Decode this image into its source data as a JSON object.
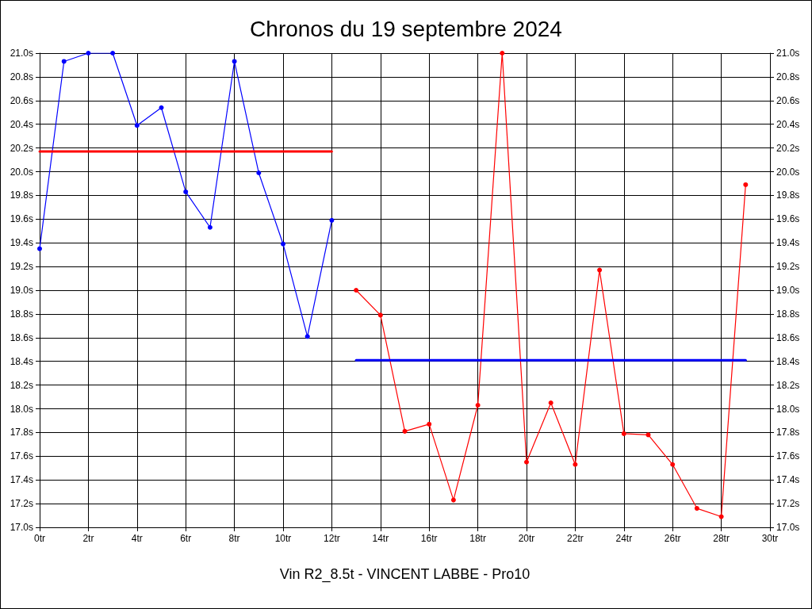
{
  "chart_data": {
    "type": "line",
    "title": "Chronos du 19 septembre 2024",
    "xlabel": "Vin R2_8.5t - VINCENT LABBE - Pro10",
    "series": [
      {
        "color": "#0000ff",
        "x": [
          0,
          1,
          2,
          3,
          4,
          5,
          6,
          7,
          8,
          9,
          10,
          11,
          12
        ],
        "values": [
          19.35,
          20.93,
          21.0,
          21.0,
          20.39,
          20.54,
          19.83,
          19.53,
          20.93,
          19.99,
          19.39,
          18.61,
          19.59
        ]
      },
      {
        "color": "#ff0000",
        "x": [
          13,
          14,
          15,
          16,
          17,
          18,
          19,
          20,
          21,
          22,
          23,
          24,
          25,
          26,
          27,
          28,
          29
        ],
        "values": [
          19.0,
          18.79,
          17.81,
          17.87,
          17.23,
          18.03,
          21.0,
          17.55,
          18.05,
          17.53,
          19.17,
          17.79,
          17.78,
          17.53,
          17.16,
          17.09,
          19.89
        ]
      },
      {
        "color": "#ff0000",
        "x": [
          0,
          12
        ],
        "values": [
          20.17,
          20.17
        ],
        "marker": "none"
      },
      {
        "color": "#0000ff",
        "x": [
          13,
          29
        ],
        "values": [
          18.41,
          18.41
        ],
        "marker": "none"
      }
    ],
    "xlim": [
      0,
      30
    ],
    "xticks": [
      {
        "value": 0,
        "label": "0tr"
      },
      {
        "value": 2,
        "label": "2tr"
      },
      {
        "value": 4,
        "label": "4tr"
      },
      {
        "value": 6,
        "label": "6tr"
      },
      {
        "value": 8,
        "label": "8tr"
      },
      {
        "value": 10,
        "label": "10tr"
      },
      {
        "value": 12,
        "label": "12tr"
      },
      {
        "value": 14,
        "label": "14tr"
      },
      {
        "value": 16,
        "label": "16tr"
      },
      {
        "value": 18,
        "label": "18tr"
      },
      {
        "value": 20,
        "label": "20tr"
      },
      {
        "value": 22,
        "label": "22tr"
      },
      {
        "value": 24,
        "label": "24tr"
      },
      {
        "value": 26,
        "label": "26tr"
      },
      {
        "value": 28,
        "label": "28tr"
      },
      {
        "value": 30,
        "label": "30tr"
      }
    ],
    "ylim": [
      17.0,
      21.0
    ],
    "yticks": [
      {
        "value": 17.0,
        "label": "17.0s"
      },
      {
        "value": 17.2,
        "label": "17.2s"
      },
      {
        "value": 17.4,
        "label": "17.4s"
      },
      {
        "value": 17.6,
        "label": "17.6s"
      },
      {
        "value": 17.8,
        "label": "17.8s"
      },
      {
        "value": 18.0,
        "label": "18.0s"
      },
      {
        "value": 18.2,
        "label": "18.2s"
      },
      {
        "value": 18.4,
        "label": "18.4s"
      },
      {
        "value": 18.6,
        "label": "18.6s"
      },
      {
        "value": 18.8,
        "label": "18.8s"
      },
      {
        "value": 19.0,
        "label": "19.0s"
      },
      {
        "value": 19.2,
        "label": "19.2s"
      },
      {
        "value": 19.4,
        "label": "19.4s"
      },
      {
        "value": 19.6,
        "label": "19.6s"
      },
      {
        "value": 19.8,
        "label": "19.8s"
      },
      {
        "value": 20.0,
        "label": "20.0s"
      },
      {
        "value": 20.2,
        "label": "20.2s"
      },
      {
        "value": 20.4,
        "label": "20.4s"
      },
      {
        "value": 20.6,
        "label": "20.6s"
      },
      {
        "value": 20.8,
        "label": "20.8s"
      },
      {
        "value": 21.0,
        "label": "21.0s"
      }
    ],
    "y2lim": [
      17.0,
      21.0
    ],
    "y2ticks": [
      {
        "value": 17.0,
        "label": "17.0s"
      },
      {
        "value": 17.2,
        "label": "17.2s"
      },
      {
        "value": 17.4,
        "label": "17.4s"
      },
      {
        "value": 17.6,
        "label": "17.6s"
      },
      {
        "value": 17.8,
        "label": "17.8s"
      },
      {
        "value": 18.0,
        "label": "18.0s"
      },
      {
        "value": 18.2,
        "label": "18.2s"
      },
      {
        "value": 18.4,
        "label": "18.4s"
      },
      {
        "value": 18.6,
        "label": "18.6s"
      },
      {
        "value": 18.8,
        "label": "18.8s"
      },
      {
        "value": 19.0,
        "label": "19.0s"
      },
      {
        "value": 19.2,
        "label": "19.2s"
      },
      {
        "value": 19.4,
        "label": "19.4s"
      },
      {
        "value": 19.6,
        "label": "19.6s"
      },
      {
        "value": 19.8,
        "label": "19.8s"
      },
      {
        "value": 20.0,
        "label": "20.0s"
      },
      {
        "value": 20.2,
        "label": "20.2s"
      },
      {
        "value": 20.4,
        "label": "20.4s"
      },
      {
        "value": 20.6,
        "label": "20.6s"
      },
      {
        "value": 20.8,
        "label": "20.8s"
      },
      {
        "value": 21.0,
        "label": "21.0s"
      }
    ],
    "grid": true,
    "marker": "circle",
    "line_style": "solid"
  }
}
